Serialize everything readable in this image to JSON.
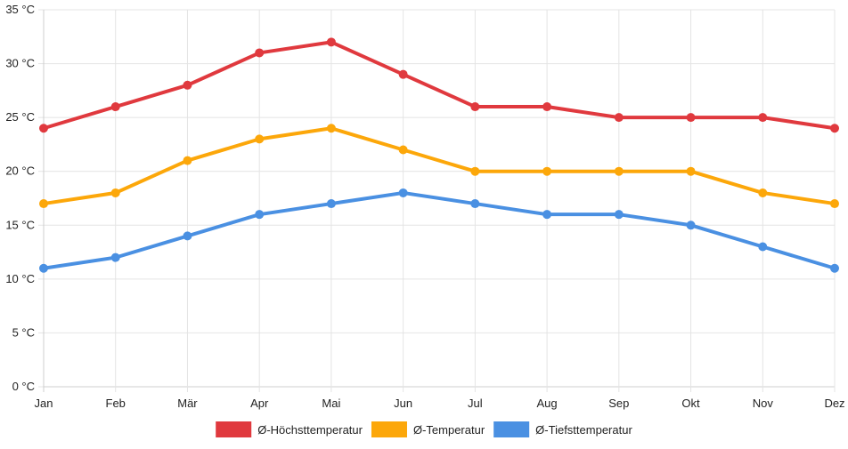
{
  "chart_data": {
    "type": "line",
    "title": "",
    "xlabel": "",
    "ylabel": "",
    "categories": [
      "Jan",
      "Feb",
      "Mär",
      "Apr",
      "Mai",
      "Jun",
      "Jul",
      "Aug",
      "Sep",
      "Okt",
      "Nov",
      "Dez"
    ],
    "ylim": [
      0,
      35
    ],
    "y_ticks": [
      0,
      5,
      10,
      15,
      20,
      25,
      30,
      35
    ],
    "y_unit": " °C",
    "grid": true,
    "legend_position": "bottom",
    "series": [
      {
        "name": "Ø-Höchsttemperatur",
        "color": "#e0393e",
        "values": [
          24,
          26,
          28,
          31,
          32,
          29,
          26,
          26,
          25,
          25,
          25,
          24
        ]
      },
      {
        "name": "Ø-Temperatur",
        "color": "#fca70a",
        "values": [
          17,
          18,
          21,
          23,
          24,
          22,
          20,
          20,
          20,
          20,
          18,
          17
        ]
      },
      {
        "name": "Ø-Tiefsttemperatur",
        "color": "#4a90e2",
        "values": [
          11,
          12,
          14,
          16,
          17,
          18,
          17,
          16,
          16,
          15,
          13,
          11
        ]
      }
    ]
  }
}
